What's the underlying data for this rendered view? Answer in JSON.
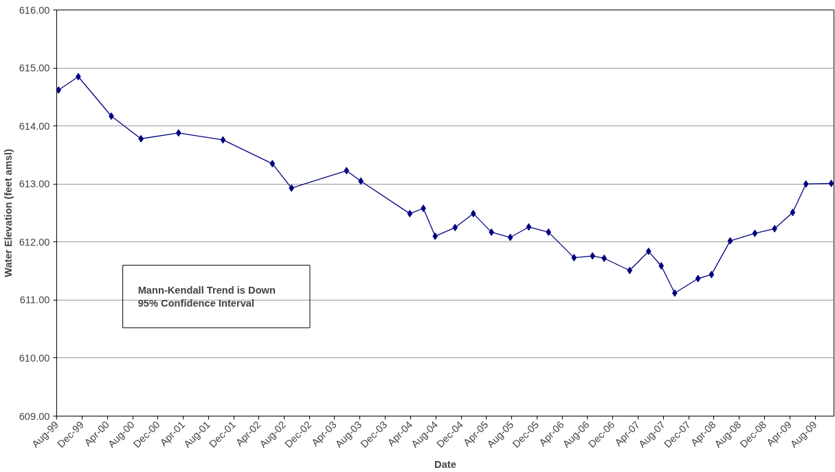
{
  "chart_data": {
    "type": "line",
    "xlabel": "Date",
    "ylabel": "Water Elevation (feet amsl)",
    "x": [
      "1999-08-10",
      "1999-11-13",
      "2000-04-20",
      "2000-09-10",
      "2001-03-10",
      "2001-10-10",
      "2002-06-05",
      "2002-09-05",
      "2003-05-28",
      "2003-08-05",
      "2004-03-28",
      "2004-06-01",
      "2004-07-28",
      "2004-11-01",
      "2005-01-28",
      "2005-04-25",
      "2005-07-25",
      "2005-10-22",
      "2006-01-25",
      "2006-05-28",
      "2006-08-25",
      "2006-10-20",
      "2007-02-20",
      "2007-05-22",
      "2007-07-22",
      "2007-09-25",
      "2008-01-15",
      "2008-03-20",
      "2008-06-18",
      "2008-10-15",
      "2009-01-18",
      "2009-04-15",
      "2009-06-18",
      "2009-10-18"
    ],
    "series": [
      {
        "color": "#000080",
        "values": [
          614.62,
          614.85,
          614.17,
          613.78,
          613.88,
          613.76,
          613.35,
          612.93,
          613.23,
          613.05,
          612.49,
          612.58,
          612.1,
          612.25,
          612.49,
          612.17,
          612.08,
          612.26,
          612.17,
          611.73,
          611.76,
          611.72,
          611.51,
          611.84,
          611.59,
          611.12,
          611.37,
          611.44,
          612.02,
          612.15,
          612.23,
          612.51,
          613.0,
          613.01
        ]
      }
    ],
    "marker": "diamond",
    "line_style": "solid",
    "grid": "y",
    "xlim": [
      "1999-08-01",
      "2009-10-31"
    ],
    "ylim": [
      609,
      616
    ],
    "yticks": [
      {
        "value": 609,
        "label": "609.00"
      },
      {
        "value": 610,
        "label": "610.00"
      },
      {
        "value": 611,
        "label": "611.00"
      },
      {
        "value": 612,
        "label": "612.00"
      },
      {
        "value": 613,
        "label": "613.00"
      },
      {
        "value": 614,
        "label": "614.00"
      },
      {
        "value": 615,
        "label": "615.00"
      },
      {
        "value": 616,
        "label": "616.00"
      }
    ],
    "xticks": [
      {
        "value": "1999-08",
        "label": "Aug-99"
      },
      {
        "value": "1999-12",
        "label": "Dec-99"
      },
      {
        "value": "2000-04",
        "label": "Apr-00"
      },
      {
        "value": "2000-08",
        "label": "Aug-00"
      },
      {
        "value": "2000-12",
        "label": "Dec-00"
      },
      {
        "value": "2001-04",
        "label": "Apr-01"
      },
      {
        "value": "2001-08",
        "label": "Aug-01"
      },
      {
        "value": "2001-12",
        "label": "Dec-01"
      },
      {
        "value": "2002-04",
        "label": "Apr-02"
      },
      {
        "value": "2002-08",
        "label": "Aug-02"
      },
      {
        "value": "2002-12",
        "label": "Dec-02"
      },
      {
        "value": "2003-04",
        "label": "Apr-03"
      },
      {
        "value": "2003-08",
        "label": "Aug-03"
      },
      {
        "value": "2003-12",
        "label": "Dec-03"
      },
      {
        "value": "2004-04",
        "label": "Apr-04"
      },
      {
        "value": "2004-08",
        "label": "Aug-04"
      },
      {
        "value": "2004-12",
        "label": "Dec-04"
      },
      {
        "value": "2005-04",
        "label": "Apr-05"
      },
      {
        "value": "2005-08",
        "label": "Aug-05"
      },
      {
        "value": "2005-12",
        "label": "Dec-05"
      },
      {
        "value": "2006-04",
        "label": "Apr-06"
      },
      {
        "value": "2006-08",
        "label": "Aug-06"
      },
      {
        "value": "2006-12",
        "label": "Dec-06"
      },
      {
        "value": "2007-04",
        "label": "Apr-07"
      },
      {
        "value": "2007-08",
        "label": "Aug-07"
      },
      {
        "value": "2007-12",
        "label": "Dec-07"
      },
      {
        "value": "2008-04",
        "label": "Apr-08"
      },
      {
        "value": "2008-08",
        "label": "Aug-08"
      },
      {
        "value": "2008-12",
        "label": "Dec-08"
      },
      {
        "value": "2009-04",
        "label": "Apr-09"
      },
      {
        "value": "2009-08",
        "label": "Aug-09"
      }
    ],
    "annotations": [
      "Mann-Kendall Trend is Down",
      "95% Confidence Interval"
    ]
  }
}
